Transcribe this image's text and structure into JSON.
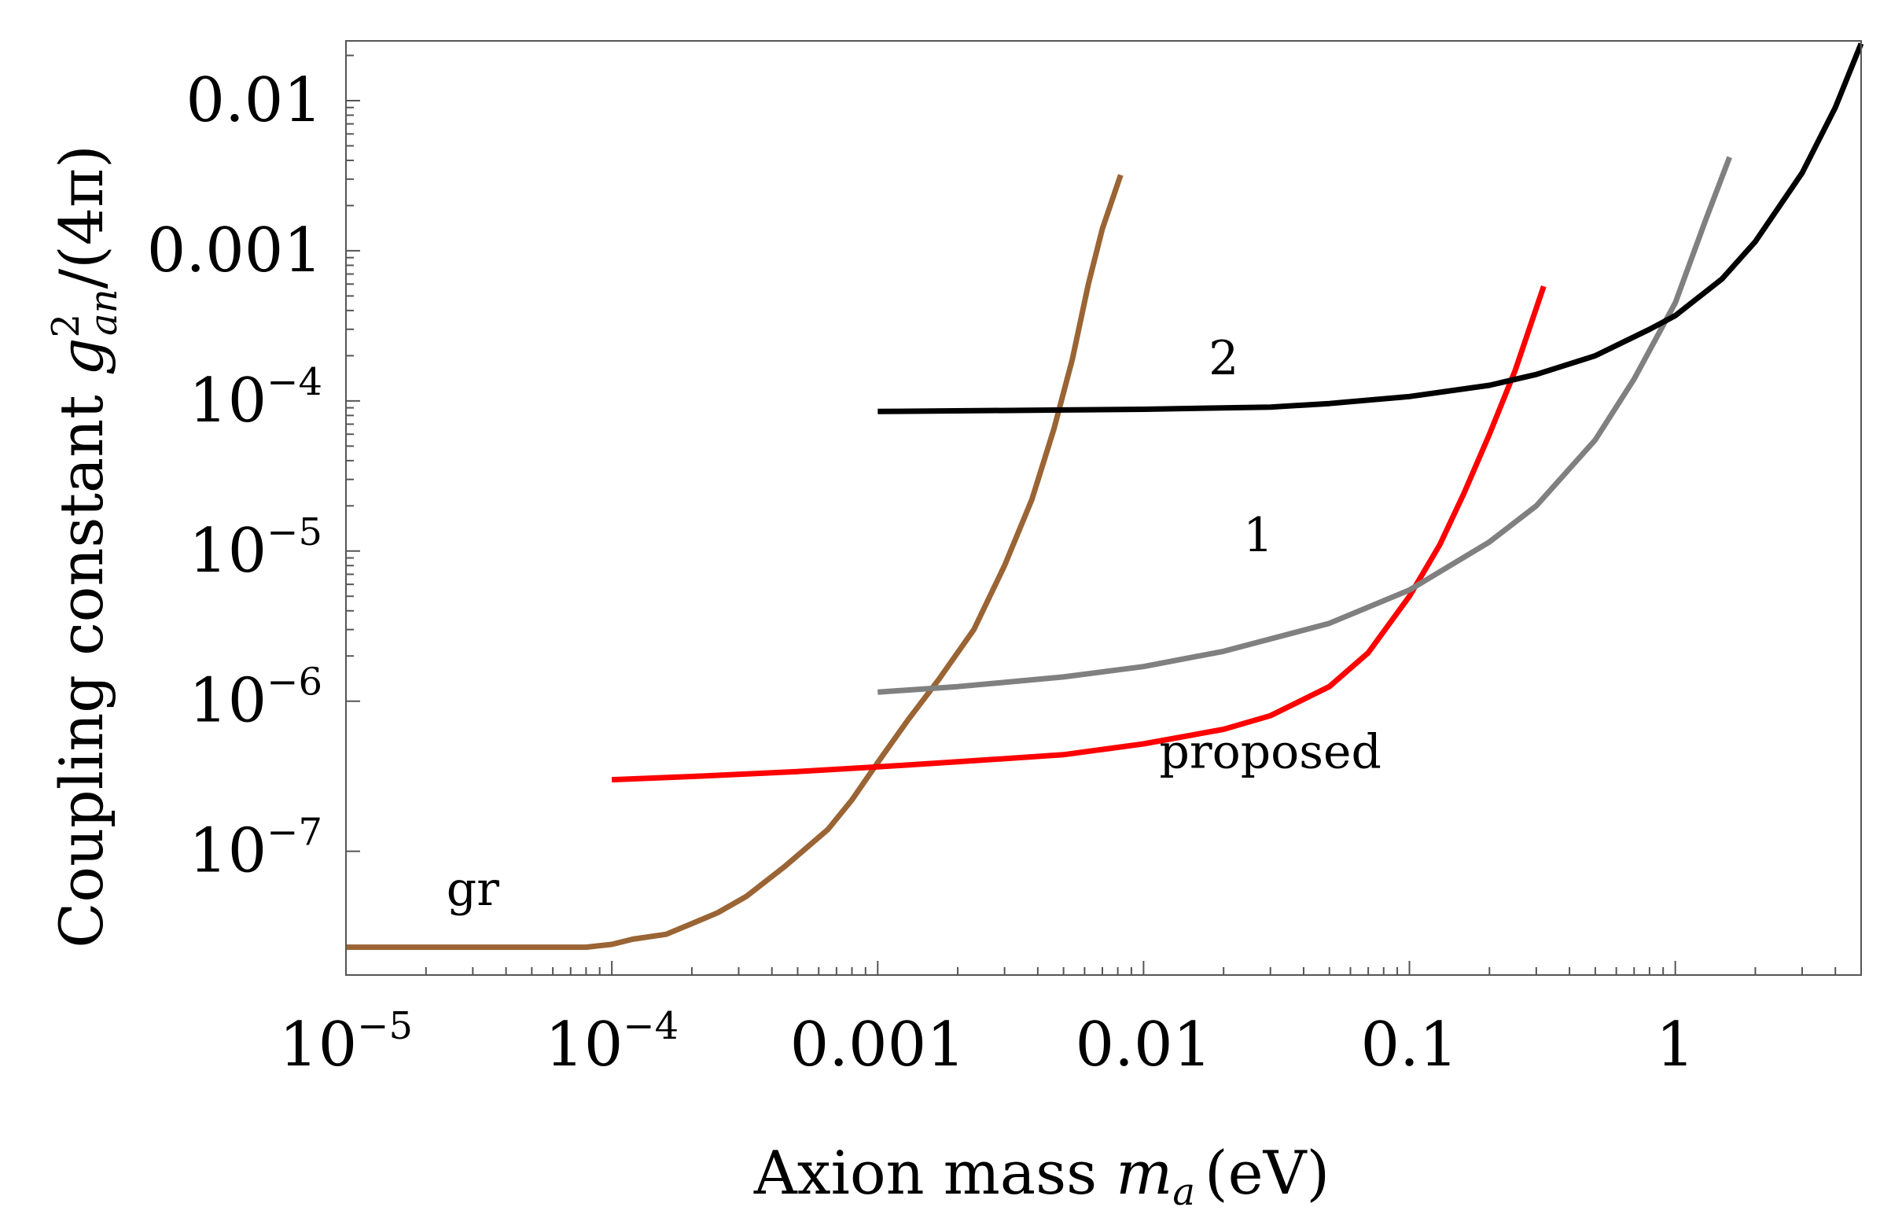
{
  "chart_data": {
    "type": "line",
    "xscale": "log",
    "yscale": "log",
    "xlim": [
      1e-05,
      5.0
    ],
    "ylim": [
      1.5e-08,
      0.025
    ],
    "xlabel": {
      "text": "Axion mass",
      "symbol": "m",
      "subscript": "a",
      "unit": "(eV)"
    },
    "ylabel": {
      "text": "Coupling constant",
      "symbol": "g",
      "superscript": "2",
      "subscript": "an",
      "suffix": "/(4π)"
    },
    "x_ticks": [
      {
        "value": 1e-05,
        "base": "10",
        "exp": "−5"
      },
      {
        "value": 0.0001,
        "base": "10",
        "exp": "−4"
      },
      {
        "value": 0.001,
        "label": "0.001"
      },
      {
        "value": 0.01,
        "label": "0.01"
      },
      {
        "value": 0.1,
        "label": "0.1"
      },
      {
        "value": 1,
        "label": "1"
      }
    ],
    "y_ticks": [
      {
        "value": 1e-07,
        "base": "10",
        "exp": "−7"
      },
      {
        "value": 1e-06,
        "base": "10",
        "exp": "−6"
      },
      {
        "value": 1e-05,
        "base": "10",
        "exp": "−5"
      },
      {
        "value": 0.0001,
        "base": "10",
        "exp": "−4"
      },
      {
        "value": 0.001,
        "label": "0.001"
      },
      {
        "value": 0.01,
        "label": "0.01"
      }
    ],
    "series": [
      {
        "name": "gr",
        "color": "#9a6434",
        "label": "gr",
        "label_at": [
          3e-05,
          4.4e-08
        ],
        "points": [
          [
            1e-05,
            2.3e-08
          ],
          [
            5e-05,
            2.3e-08
          ],
          [
            8e-05,
            2.3e-08
          ],
          [
            0.0001,
            2.4e-08
          ],
          [
            0.00012,
            2.6e-08
          ],
          [
            0.00016,
            2.8e-08
          ],
          [
            0.0002,
            3.3e-08
          ],
          [
            0.00025,
            3.9e-08
          ],
          [
            0.00032,
            5e-08
          ],
          [
            0.00045,
            8e-08
          ],
          [
            0.00065,
            1.4e-07
          ],
          [
            0.0008,
            2.2e-07
          ],
          [
            0.001,
            3.9e-07
          ],
          [
            0.0013,
            7.5e-07
          ],
          [
            0.0017,
            1.4e-06
          ],
          [
            0.0023,
            3e-06
          ],
          [
            0.003,
            8e-06
          ],
          [
            0.0038,
            2.2e-05
          ],
          [
            0.0046,
            6.5e-05
          ],
          [
            0.0054,
            0.00019
          ],
          [
            0.0062,
            0.0006
          ],
          [
            0.007,
            0.0014
          ],
          [
            0.0082,
            0.0032
          ]
        ]
      },
      {
        "name": "proposed",
        "color": "#ff0000",
        "label": "proposed",
        "label_at": [
          0.03,
          3.6e-07
        ],
        "points": [
          [
            0.0001,
            3e-07
          ],
          [
            0.0002,
            3.15e-07
          ],
          [
            0.0005,
            3.4e-07
          ],
          [
            0.001,
            3.65e-07
          ],
          [
            0.002,
            3.95e-07
          ],
          [
            0.005,
            4.4e-07
          ],
          [
            0.01,
            5.2e-07
          ],
          [
            0.02,
            6.5e-07
          ],
          [
            0.03,
            8e-07
          ],
          [
            0.05,
            1.25e-06
          ],
          [
            0.07,
            2.1e-06
          ],
          [
            0.1,
            5e-06
          ],
          [
            0.13,
            1.1e-05
          ],
          [
            0.16,
            2.4e-05
          ],
          [
            0.2,
            6e-05
          ],
          [
            0.25,
            0.00016
          ],
          [
            0.32,
            0.00058
          ]
        ]
      },
      {
        "name": "1",
        "color": "#808080",
        "label": "1",
        "label_at": [
          0.027,
          1e-05
        ],
        "points": [
          [
            0.001,
            1.15e-06
          ],
          [
            0.002,
            1.25e-06
          ],
          [
            0.005,
            1.45e-06
          ],
          [
            0.01,
            1.7e-06
          ],
          [
            0.02,
            2.15e-06
          ],
          [
            0.05,
            3.3e-06
          ],
          [
            0.1,
            5.5e-06
          ],
          [
            0.2,
            1.15e-05
          ],
          [
            0.3,
            2e-05
          ],
          [
            0.5,
            5.5e-05
          ],
          [
            0.7,
            0.00014
          ],
          [
            1.0,
            0.00045
          ],
          [
            1.3,
            0.0016
          ],
          [
            1.6,
            0.0042
          ]
        ]
      },
      {
        "name": "2",
        "color": "#000000",
        "label": "2",
        "label_at": [
          0.02,
          0.00015
        ],
        "points": [
          [
            0.001,
            8.5e-05
          ],
          [
            0.005,
            8.7e-05
          ],
          [
            0.01,
            8.8e-05
          ],
          [
            0.03,
            9.1e-05
          ],
          [
            0.05,
            9.6e-05
          ],
          [
            0.1,
            0.000107
          ],
          [
            0.2,
            0.000127
          ],
          [
            0.3,
            0.00015
          ],
          [
            0.5,
            0.0002
          ],
          [
            0.8,
            0.0003
          ],
          [
            1.0,
            0.00037
          ],
          [
            1.5,
            0.00065
          ],
          [
            2.0,
            0.00115
          ],
          [
            3.0,
            0.0033
          ],
          [
            4.0,
            0.009
          ],
          [
            5.0,
            0.024
          ]
        ]
      }
    ]
  }
}
